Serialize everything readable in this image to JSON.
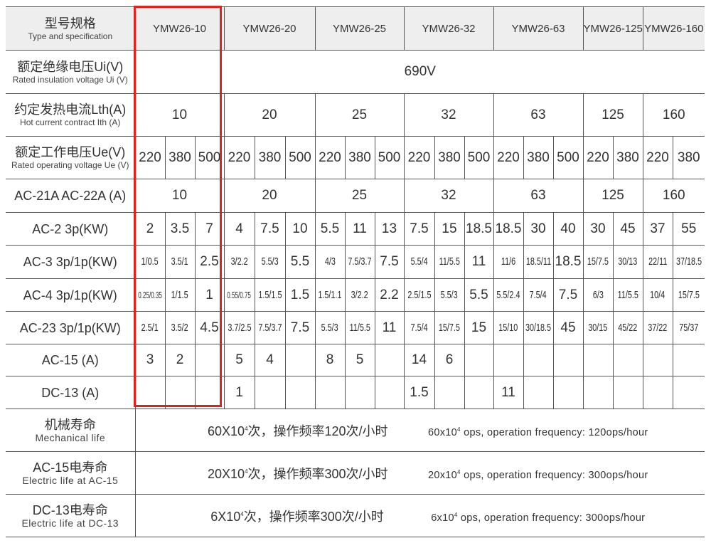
{
  "highlight_color": "#e0211d",
  "header": {
    "label_cn": "型号规格",
    "label_en": "Type and specification",
    "models": [
      {
        "name": "YMW26-10",
        "span": 3
      },
      {
        "name": "YMW26-20",
        "span": 3
      },
      {
        "name": "YMW26-25",
        "span": 3
      },
      {
        "name": "YMW26-32",
        "span": 3
      },
      {
        "name": "YMW26-63",
        "span": 3
      },
      {
        "name": "YMW26-125",
        "span": 2
      },
      {
        "name": "YMW26-160",
        "span": 2
      }
    ]
  },
  "rows": [
    {
      "id": "ui",
      "label_cn": "额定绝缘电压Ui(V)",
      "label_en": "Rated insulation voltage Ui (V)",
      "height": 61,
      "cells": [
        {
          "text": "690V",
          "span": 19
        }
      ]
    },
    {
      "id": "lth",
      "label_cn": "约定发热电流Lth(A)",
      "label_en": "Hot current contract Ith (A)",
      "height": 60,
      "cells": [
        {
          "text": "10",
          "span": 3
        },
        {
          "text": "20",
          "span": 3
        },
        {
          "text": "25",
          "span": 3
        },
        {
          "text": "32",
          "span": 3
        },
        {
          "text": "63",
          "span": 3
        },
        {
          "text": "125",
          "span": 2
        },
        {
          "text": "160",
          "span": 2
        }
      ]
    },
    {
      "id": "ue",
      "label_cn": "额定工作电压Ue(V)",
      "label_en": "Rated operating voltage Ue (V)",
      "height": 60,
      "values": [
        "220",
        "380",
        "500",
        "220",
        "380",
        "500",
        "220",
        "380",
        "500",
        "220",
        "380",
        "500",
        "220",
        "380",
        "500",
        "220",
        "380",
        "220",
        "380"
      ]
    },
    {
      "id": "ac21",
      "label_cn": "AC-21A  AC-22A  (A)",
      "height": 47,
      "cells": [
        {
          "text": "10",
          "span": 3
        },
        {
          "text": "20",
          "span": 3
        },
        {
          "text": "25",
          "span": 3
        },
        {
          "text": "32",
          "span": 3
        },
        {
          "text": "63",
          "span": 3
        },
        {
          "text": "125",
          "span": 2
        },
        {
          "text": "160",
          "span": 2
        }
      ]
    },
    {
      "id": "ac2",
      "label_cn": "AC-2 3p(KW)",
      "height": 46,
      "values": [
        "2",
        "3.5",
        "7",
        "4",
        "7.5",
        "10",
        "5.5",
        "11",
        "13",
        "7.5",
        "15",
        "18.5",
        "18.5",
        "30",
        "40",
        "30",
        "45",
        "37",
        "55"
      ]
    },
    {
      "id": "ac3",
      "label_cn": "AC-3 3p/1p(KW)",
      "height": 47,
      "values": [
        "1/0.5",
        "3.5/1",
        "2.5",
        "3/2.2",
        "5.5/3",
        "5.5",
        "4/3",
        "7.5/3.7",
        "7.5",
        "5.5/4",
        "11/5.5",
        "11",
        "11/6",
        "18.5/11",
        "18.5",
        "15/7.5",
        "30/13",
        "22/11",
        "37/18.5"
      ]
    },
    {
      "id": "ac4",
      "label_cn": "AC-4 3p/1p(KW)",
      "height": 46,
      "values": [
        "0.25/0.35",
        "1/1.5",
        "1",
        "0.55/0.75",
        "1.5/1.5",
        "1.5",
        "1.5/1.1",
        "3/2.2",
        "2.2",
        "2.5/1.5",
        "5.5/3",
        "5.5",
        "5.5/2.4",
        "7.5/4",
        "7.5",
        "6/3",
        "11/5.5",
        "10/4",
        "15/7.5"
      ]
    },
    {
      "id": "ac23",
      "label_cn": "AC-23 3p/1p(KW)",
      "height": 46,
      "values": [
        "2.5/1",
        "3.5/2",
        "4.5",
        "3.7/2.5",
        "7.5/3.7",
        "7.5",
        "5.5/3",
        "11/5.5",
        "11",
        "7.5/4",
        "15/7.5",
        "15",
        "15/10",
        "30/18.5",
        "45",
        "30/15",
        "45/22",
        "37/22",
        "75/37"
      ]
    },
    {
      "id": "ac15",
      "label_cn": "AC-15    (A)",
      "height": 45,
      "values": [
        "3",
        "2",
        "",
        "5",
        "4",
        "",
        "8",
        "5",
        "",
        "14",
        "6",
        "",
        "",
        "",
        "",
        "",
        "",
        "",
        ""
      ]
    },
    {
      "id": "dc13",
      "label_cn": "DC-13    (A)",
      "height": 46,
      "values": [
        "",
        "",
        "",
        "1",
        "",
        "",
        "",
        "",
        "",
        "1.5",
        "",
        "",
        "11",
        "",
        "",
        "",
        "",
        "",
        ""
      ]
    }
  ],
  "life_rows": [
    {
      "id": "mech",
      "label_cn": "机械寿命",
      "label_en": "Mechanical life",
      "cn_pre": "60X10",
      "cn_sup": "4",
      "cn_post": "次，操作频率120次/小时",
      "en_pre": "60x10",
      "en_sup": "4",
      "en_post": " ops, operation frequency: 120ops/hour"
    },
    {
      "id": "ac15life",
      "label_cn": "AC-15电寿命",
      "label_en": "Electric life at AC-15",
      "cn_pre": "20X10",
      "cn_sup": "4",
      "cn_post": "次，操作频率300次/小时",
      "en_pre": "20x10",
      "en_sup": "4",
      "en_post": " ops, operation frequency: 300ops/hour"
    },
    {
      "id": "dc13life",
      "label_cn": "DC-13电寿命",
      "label_en": "Electric life at DC-13",
      "cn_pre": "6X10",
      "cn_sup": "4",
      "cn_post": "次，操作频率300次/小时",
      "en_pre": "6x10",
      "en_sup": "4",
      "en_post": " ops, operation frequency: 300ops/hour"
    }
  ]
}
